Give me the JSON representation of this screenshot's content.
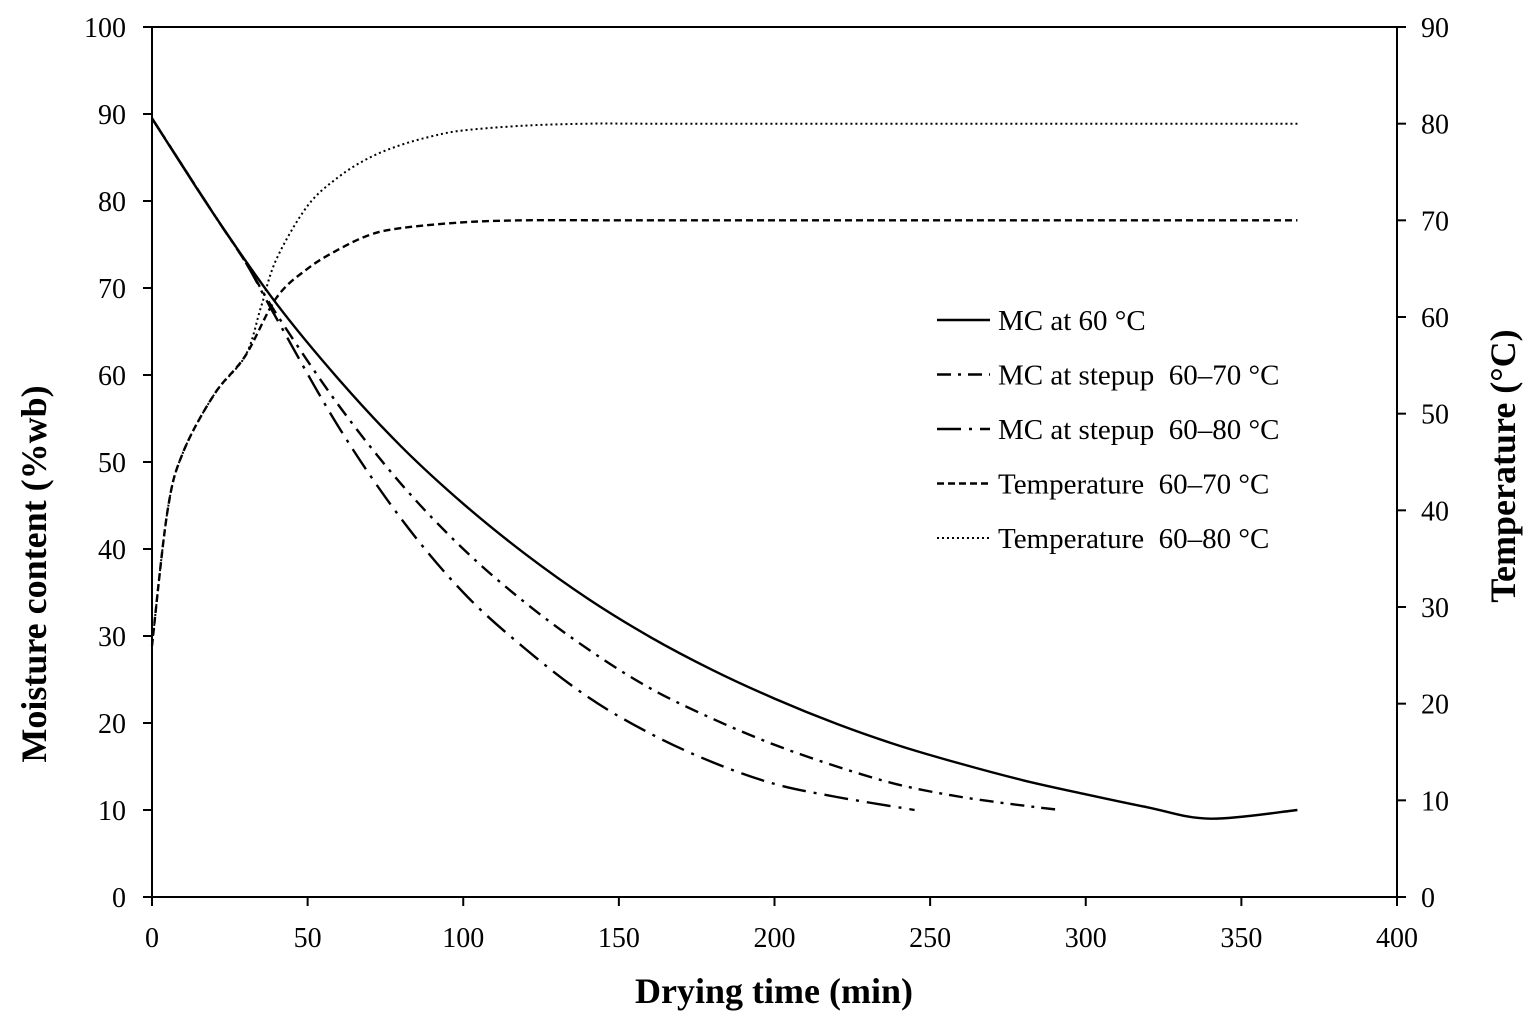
{
  "chart_data": {
    "type": "line",
    "xlabel": "Drying time (min)",
    "ylabel": "Moisture content (%wb)",
    "y2label": "Temperature (°C)",
    "xlim": [
      0,
      400
    ],
    "ylim": [
      0,
      100
    ],
    "y2lim": [
      0,
      90
    ],
    "x_ticks": [
      "0",
      "50",
      "100",
      "150",
      "200",
      "250",
      "300",
      "350",
      "400"
    ],
    "y_ticks": [
      "0",
      "10",
      "20",
      "30",
      "40",
      "50",
      "60",
      "70",
      "80",
      "90",
      "100"
    ],
    "y2_ticks": [
      "0",
      "10",
      "20",
      "30",
      "40",
      "50",
      "60",
      "70",
      "80",
      "90"
    ],
    "grid": false,
    "legend_position": "center-right",
    "series": [
      {
        "name": "MC at 60 °C",
        "axis": "left",
        "dash": "solid",
        "x": [
          0,
          20,
          40,
          60,
          80,
          100,
          120,
          140,
          160,
          180,
          200,
          220,
          240,
          260,
          280,
          300,
          320,
          340,
          368
        ],
        "values": [
          89.5,
          78.4,
          68.2,
          59.5,
          51.8,
          45.2,
          39.4,
          34.3,
          29.9,
          26.1,
          22.8,
          19.9,
          17.4,
          15.3,
          13.4,
          11.8,
          10.3,
          9.0,
          10.0
        ]
      },
      {
        "name": "MC at stepup  60–70 °C",
        "axis": "left",
        "dash": "dash-dot",
        "x": [
          0,
          20,
          30,
          40,
          60,
          80,
          100,
          120,
          140,
          160,
          180,
          200,
          220,
          240,
          260,
          280,
          292
        ],
        "values": [
          89.5,
          78.4,
          73.0,
          67.0,
          56.5,
          47.5,
          40.0,
          33.8,
          28.5,
          24.0,
          20.5,
          17.5,
          15.0,
          12.9,
          11.5,
          10.5,
          10.0
        ]
      },
      {
        "name": "MC at stepup  60–80 °C",
        "axis": "left",
        "dash": "long-dash-dot",
        "x": [
          0,
          20,
          30,
          40,
          60,
          80,
          100,
          120,
          140,
          160,
          180,
          200,
          220,
          245
        ],
        "values": [
          89.5,
          78.4,
          73.0,
          66.5,
          54.0,
          43.5,
          35.0,
          28.5,
          23.0,
          18.8,
          15.5,
          13.0,
          11.5,
          10.0
        ]
      },
      {
        "name": "Temperature  60–70 °C",
        "axis": "right",
        "dash": "dashed",
        "x": [
          0,
          5,
          10,
          20,
          30,
          40,
          50,
          60,
          70,
          80,
          100,
          120,
          150,
          200,
          250,
          300,
          368
        ],
        "values": [
          26,
          40,
          46,
          52,
          56,
          62,
          65,
          67,
          68.5,
          69.2,
          69.8,
          70,
          70,
          70,
          70,
          70,
          70
        ]
      },
      {
        "name": "Temperature  60–80 °C",
        "axis": "right",
        "dash": "dotted",
        "x": [
          0,
          5,
          10,
          20,
          30,
          35,
          40,
          50,
          60,
          70,
          80,
          90,
          100,
          120,
          140,
          160,
          200,
          250,
          300,
          368
        ],
        "values": [
          26,
          40,
          46,
          52,
          56,
          61,
          66,
          71.5,
          74.5,
          76.5,
          77.8,
          78.7,
          79.3,
          79.8,
          80,
          80,
          80,
          80,
          80,
          80
        ]
      }
    ]
  }
}
